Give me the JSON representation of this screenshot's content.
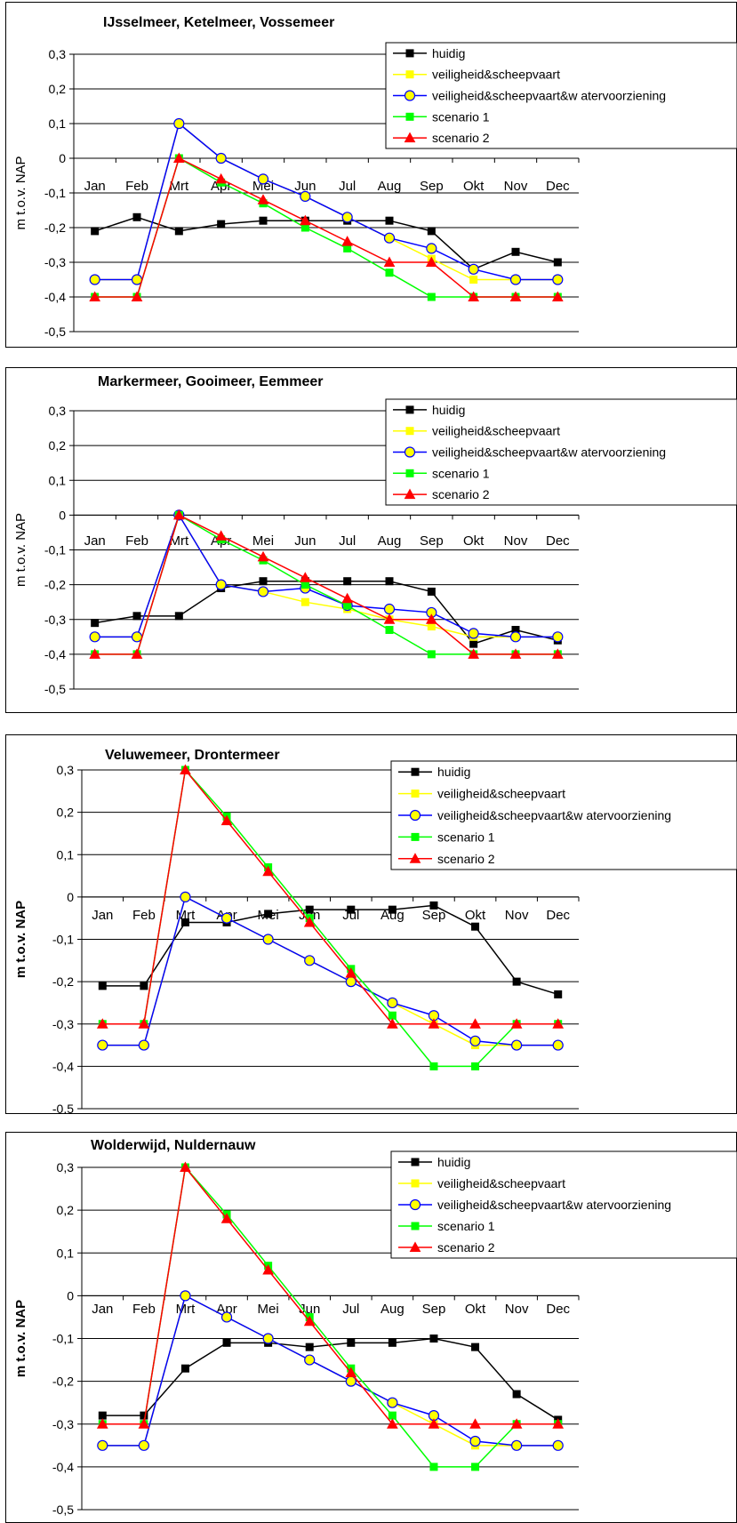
{
  "legend_labels": [
    "huidig",
    "veiligheid&scheepvaart",
    "veiligheid&scheepvaart&w atervoorziening",
    "scenario 1",
    "scenario 2"
  ],
  "colors": {
    "huidig": "#000000",
    "veiligheid": "#ffff00",
    "watervoorziening": "#0000ff",
    "scenario1": "#00ff00",
    "scenario2": "#ff0000",
    "marker_fill_circle": "#ffff00"
  },
  "chart_data": [
    {
      "type": "line",
      "title": "IJsselmeer, Ketelmeer, Vossemeer",
      "ylabel": "m t.o.v. NAP",
      "ylim": [
        -0.5,
        0.3
      ],
      "y_ticks": [
        "0,3",
        "0,2",
        "0,1",
        "0",
        "-0,1",
        "-0,2",
        "-0,3",
        "-0,4",
        "-0,5"
      ],
      "categories": [
        "Jan",
        "Feb",
        "Mrt",
        "Apr",
        "Mei",
        "Jun",
        "Jul",
        "Aug",
        "Sep",
        "Okt",
        "Nov",
        "Dec"
      ],
      "grid": true,
      "legend_position": "top-right",
      "series": [
        {
          "name": "huidig",
          "values": [
            -0.21,
            -0.17,
            -0.21,
            -0.19,
            -0.18,
            -0.18,
            -0.18,
            -0.18,
            -0.21,
            -0.32,
            -0.27,
            -0.3
          ]
        },
        {
          "name": "veiligheid&scheepvaart",
          "values": [
            -0.35,
            -0.35,
            0.1,
            0.0,
            -0.06,
            -0.11,
            -0.17,
            -0.23,
            -0.29,
            -0.35,
            -0.35,
            -0.35
          ]
        },
        {
          "name": "veiligheid&scheepvaart&w atervoorziening",
          "values": [
            -0.35,
            -0.35,
            0.1,
            0.0,
            -0.06,
            -0.11,
            -0.17,
            -0.23,
            -0.26,
            -0.32,
            -0.35,
            -0.35
          ]
        },
        {
          "name": "scenario 1",
          "values": [
            -0.4,
            -0.4,
            0.0,
            -0.07,
            -0.13,
            -0.2,
            -0.26,
            -0.33,
            -0.4,
            -0.4,
            -0.4,
            -0.4
          ]
        },
        {
          "name": "scenario 2",
          "values": [
            -0.4,
            -0.4,
            0.0,
            -0.06,
            -0.12,
            -0.18,
            -0.24,
            -0.3,
            -0.3,
            -0.4,
            -0.4,
            -0.4
          ]
        }
      ]
    },
    {
      "type": "line",
      "title": "Markermeer, Gooimeer, Eemmeer",
      "ylabel": "m t.o.v. NAP",
      "ylim": [
        -0.5,
        0.3
      ],
      "y_ticks": [
        "0,3",
        "0,2",
        "0,1",
        "0",
        "-0,1",
        "-0,2",
        "-0,3",
        "-0,4",
        "-0,5"
      ],
      "categories": [
        "Jan",
        "Feb",
        "Mrt",
        "Apr",
        "Mei",
        "Jun",
        "Jul",
        "Aug",
        "Sep",
        "Okt",
        "Nov",
        "Dec"
      ],
      "grid": true,
      "legend_position": "top-right",
      "series": [
        {
          "name": "huidig",
          "values": [
            -0.31,
            -0.29,
            -0.29,
            -0.21,
            -0.19,
            -0.19,
            -0.19,
            -0.19,
            -0.22,
            -0.37,
            -0.33,
            -0.36
          ]
        },
        {
          "name": "veiligheid&scheepvaart",
          "values": [
            -0.35,
            -0.35,
            0.0,
            -0.2,
            -0.22,
            -0.25,
            -0.27,
            -0.3,
            -0.32,
            -0.35,
            -0.35,
            -0.35
          ]
        },
        {
          "name": "veiligheid&scheepvaart&w atervoorziening",
          "values": [
            -0.35,
            -0.35,
            0.0,
            -0.2,
            -0.22,
            -0.21,
            -0.26,
            -0.27,
            -0.28,
            -0.34,
            -0.35,
            -0.35
          ]
        },
        {
          "name": "scenario 1",
          "values": [
            -0.4,
            -0.4,
            0.0,
            -0.07,
            -0.13,
            -0.2,
            -0.26,
            -0.33,
            -0.4,
            -0.4,
            -0.4,
            -0.4
          ]
        },
        {
          "name": "scenario 2",
          "values": [
            -0.4,
            -0.4,
            0.0,
            -0.06,
            -0.12,
            -0.18,
            -0.24,
            -0.3,
            -0.3,
            -0.4,
            -0.4,
            -0.4
          ]
        }
      ]
    },
    {
      "type": "line",
      "title": "Veluwemeer, Drontermeer",
      "ylabel": "m t.o.v. NAP",
      "ylim": [
        -0.5,
        0.3
      ],
      "y_ticks": [
        "0,3",
        "0,2",
        "0,1",
        "0",
        "-0,1",
        "-0,2",
        "-0,3",
        "-0,4",
        "-0,5"
      ],
      "categories": [
        "Jan",
        "Feb",
        "Mrt",
        "Apr",
        "Mei",
        "Jun",
        "Jul",
        "Aug",
        "Sep",
        "Okt",
        "Nov",
        "Dec"
      ],
      "grid": true,
      "legend_position": "top-right",
      "series": [
        {
          "name": "huidig",
          "values": [
            -0.21,
            -0.21,
            -0.06,
            -0.06,
            -0.04,
            -0.03,
            -0.03,
            -0.03,
            -0.02,
            -0.07,
            -0.2,
            -0.23
          ]
        },
        {
          "name": "veiligheid&scheepvaart",
          "values": [
            -0.35,
            -0.35,
            0.0,
            -0.05,
            -0.1,
            -0.15,
            -0.2,
            -0.25,
            -0.3,
            -0.35,
            -0.35,
            -0.35
          ]
        },
        {
          "name": "veiligheid&scheepvaart&w atervoorziening",
          "values": [
            -0.35,
            -0.35,
            0.0,
            -0.05,
            -0.1,
            -0.15,
            -0.2,
            -0.25,
            -0.28,
            -0.34,
            -0.35,
            -0.35
          ]
        },
        {
          "name": "scenario 1",
          "values": [
            -0.3,
            -0.3,
            0.3,
            0.19,
            0.07,
            -0.05,
            -0.17,
            -0.28,
            -0.4,
            -0.4,
            -0.3,
            -0.3
          ]
        },
        {
          "name": "scenario 2",
          "values": [
            -0.3,
            -0.3,
            0.3,
            0.18,
            0.06,
            -0.06,
            -0.18,
            -0.3,
            -0.3,
            -0.3,
            -0.3,
            -0.3
          ]
        }
      ]
    },
    {
      "type": "line",
      "title": "Wolderwijd, Nuldernauw",
      "ylabel": "m t.o.v. NAP",
      "ylim": [
        -0.5,
        0.3
      ],
      "y_ticks": [
        "0,3",
        "0,2",
        "0,1",
        "0",
        "-0,1",
        "-0,2",
        "-0,3",
        "-0,4",
        "-0,5"
      ],
      "categories": [
        "Jan",
        "Feb",
        "Mrt",
        "Apr",
        "Mei",
        "Jun",
        "Jul",
        "Aug",
        "Sep",
        "Okt",
        "Nov",
        "Dec"
      ],
      "grid": true,
      "legend_position": "top-right",
      "series": [
        {
          "name": "huidig",
          "values": [
            -0.28,
            -0.28,
            -0.17,
            -0.11,
            -0.11,
            -0.12,
            -0.11,
            -0.11,
            -0.1,
            -0.12,
            -0.23,
            -0.29
          ]
        },
        {
          "name": "veiligheid&scheepvaart",
          "values": [
            -0.35,
            -0.35,
            0.0,
            -0.05,
            -0.1,
            -0.15,
            -0.2,
            -0.25,
            -0.3,
            -0.35,
            -0.35,
            -0.35
          ]
        },
        {
          "name": "veiligheid&scheepvaart&w atervoorziening",
          "values": [
            -0.35,
            -0.35,
            0.0,
            -0.05,
            -0.1,
            -0.15,
            -0.2,
            -0.25,
            -0.28,
            -0.34,
            -0.35,
            -0.35
          ]
        },
        {
          "name": "scenario 1",
          "values": [
            -0.3,
            -0.3,
            0.3,
            0.19,
            0.07,
            -0.05,
            -0.17,
            -0.28,
            -0.4,
            -0.4,
            -0.3,
            -0.3
          ]
        },
        {
          "name": "scenario 2",
          "values": [
            -0.3,
            -0.3,
            0.3,
            0.18,
            0.06,
            -0.06,
            -0.18,
            -0.3,
            -0.3,
            -0.3,
            -0.3,
            -0.3
          ]
        }
      ]
    }
  ]
}
